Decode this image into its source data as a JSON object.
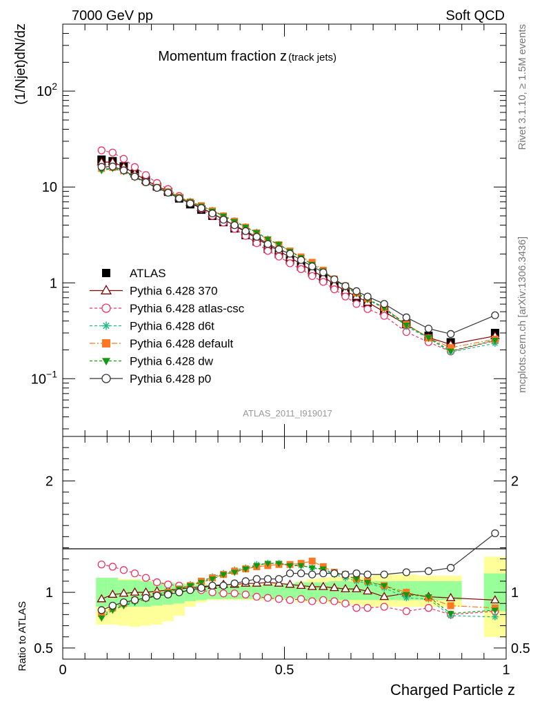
{
  "header": {
    "left": "7000 GeV pp",
    "right": "Soft QCD"
  },
  "side_labels": {
    "rivet": "Rivet 3.1.10, ≥ 1.5M events",
    "mcplots": "mcplots.cern.ch [arXiv:1306.3436]"
  },
  "chart_data": {
    "type": "line",
    "title_main": "Momentum fraction z",
    "title_sub": "(track jets)",
    "ylabel": "(1/Njet)dN/dz",
    "xlabel": "Charged Particle z",
    "ratio_ylabel": "Ratio to ATLAS",
    "watermark": "ATLAS_2011_I919017",
    "y_scale": "log",
    "ylim": [
      0.025,
      500
    ],
    "xlim": [
      0,
      1
    ],
    "ratio_ylim": [
      0.4,
      2.4
    ],
    "x_ticks": [
      "0",
      "0.5",
      "1"
    ],
    "y_ticks": [
      "10^-1",
      "1",
      "10",
      "10^2"
    ],
    "ratio_y_ticks": [
      "0.5",
      "1",
      "2"
    ],
    "bands": [
      {
        "x0": 0.075,
        "x1": 0.1,
        "inner": [
          0.87,
          1.13
        ],
        "outer": [
          0.71,
          1.13
        ]
      },
      {
        "x0": 0.1,
        "x1": 0.125,
        "inner": [
          0.87,
          1.13
        ],
        "outer": [
          0.71,
          1.13
        ]
      },
      {
        "x0": 0.125,
        "x1": 0.15,
        "inner": [
          0.87,
          1.11
        ],
        "outer": [
          0.7,
          1.12
        ]
      },
      {
        "x0": 0.15,
        "x1": 0.175,
        "inner": [
          0.87,
          1.11
        ],
        "outer": [
          0.69,
          1.12
        ]
      },
      {
        "x0": 0.175,
        "x1": 0.2,
        "inner": [
          0.87,
          1.1
        ],
        "outer": [
          0.7,
          1.11
        ]
      },
      {
        "x0": 0.2,
        "x1": 0.225,
        "inner": [
          0.88,
          1.09
        ],
        "outer": [
          0.71,
          1.09
        ]
      },
      {
        "x0": 0.225,
        "x1": 0.25,
        "inner": [
          0.89,
          1.09
        ],
        "outer": [
          0.74,
          1.09
        ]
      },
      {
        "x0": 0.25,
        "x1": 0.275,
        "inner": [
          0.9,
          1.08
        ],
        "outer": [
          0.79,
          1.08
        ]
      },
      {
        "x0": 0.275,
        "x1": 0.3,
        "inner": [
          0.92,
          1.07
        ],
        "outer": [
          0.87,
          1.08
        ]
      },
      {
        "x0": 0.3,
        "x1": 0.325,
        "inner": [
          0.93,
          1.07
        ],
        "outer": [
          0.91,
          1.08
        ]
      },
      {
        "x0": 0.325,
        "x1": 0.35,
        "inner": [
          0.94,
          1.06
        ],
        "outer": [
          0.93,
          1.07
        ]
      },
      {
        "x0": 0.35,
        "x1": 0.375,
        "inner": [
          0.94,
          1.06
        ],
        "outer": [
          0.93,
          1.07
        ]
      },
      {
        "x0": 0.375,
        "x1": 0.4,
        "inner": [
          0.94,
          1.06
        ],
        "outer": [
          0.93,
          1.07
        ]
      },
      {
        "x0": 0.4,
        "x1": 0.425,
        "inner": [
          0.94,
          1.06
        ],
        "outer": [
          0.93,
          1.07
        ]
      },
      {
        "x0": 0.425,
        "x1": 0.45,
        "inner": [
          0.94,
          1.06
        ],
        "outer": [
          0.93,
          1.07
        ]
      },
      {
        "x0": 0.45,
        "x1": 0.475,
        "inner": [
          0.94,
          1.07
        ],
        "outer": [
          0.93,
          1.08
        ]
      },
      {
        "x0": 0.475,
        "x1": 0.5,
        "inner": [
          0.94,
          1.07
        ],
        "outer": [
          0.93,
          1.08
        ]
      },
      {
        "x0": 0.5,
        "x1": 0.525,
        "inner": [
          0.94,
          1.08
        ],
        "outer": [
          0.93,
          1.08
        ]
      },
      {
        "x0": 0.525,
        "x1": 0.55,
        "inner": [
          0.93,
          1.09
        ],
        "outer": [
          0.91,
          1.1
        ]
      },
      {
        "x0": 0.55,
        "x1": 0.575,
        "inner": [
          0.93,
          1.09
        ],
        "outer": [
          0.91,
          1.12
        ]
      },
      {
        "x0": 0.575,
        "x1": 0.6,
        "inner": [
          0.93,
          1.09
        ],
        "outer": [
          0.91,
          1.13
        ]
      },
      {
        "x0": 0.6,
        "x1": 0.625,
        "inner": [
          0.93,
          1.1
        ],
        "outer": [
          0.9,
          1.14
        ]
      },
      {
        "x0": 0.625,
        "x1": 0.65,
        "inner": [
          0.93,
          1.1
        ],
        "outer": [
          0.89,
          1.14
        ]
      },
      {
        "x0": 0.65,
        "x1": 0.675,
        "inner": [
          0.93,
          1.1
        ],
        "outer": [
          0.89,
          1.14
        ]
      },
      {
        "x0": 0.675,
        "x1": 0.7,
        "inner": [
          0.93,
          1.1
        ],
        "outer": [
          0.87,
          1.14
        ]
      },
      {
        "x0": 0.7,
        "x1": 0.75,
        "inner": [
          0.93,
          1.1
        ],
        "outer": [
          0.87,
          1.16
        ]
      },
      {
        "x0": 0.75,
        "x1": 0.8,
        "inner": [
          0.93,
          1.1
        ],
        "outer": [
          0.87,
          1.16
        ]
      },
      {
        "x0": 0.8,
        "x1": 0.9,
        "inner": [
          0.93,
          1.1
        ],
        "outer": [
          0.87,
          1.15
        ]
      },
      {
        "x0": 0.95,
        "x1": 1.0,
        "inner": [
          0.83,
          1.17
        ],
        "outer": [
          0.6,
          1.32
        ]
      }
    ],
    "series": [
      {
        "name": "ATLAS",
        "color": "#000000",
        "marker": "square-filled",
        "dash": "none",
        "x": [
          0.0875,
          0.1125,
          0.1375,
          0.1625,
          0.1875,
          0.2125,
          0.2375,
          0.2625,
          0.2875,
          0.3125,
          0.3375,
          0.3625,
          0.3875,
          0.4125,
          0.4375,
          0.4625,
          0.4875,
          0.5125,
          0.5375,
          0.5625,
          0.5875,
          0.6125,
          0.6375,
          0.6625,
          0.6875,
          0.725,
          0.775,
          0.825,
          0.875,
          0.975
        ],
        "values": [
          19.3,
          18.6,
          16.4,
          13.8,
          11.8,
          10.1,
          8.9,
          7.6,
          6.6,
          5.8,
          5.0,
          4.3,
          3.7,
          3.15,
          2.7,
          2.27,
          2.0,
          1.72,
          1.48,
          1.28,
          1.1,
          0.93,
          0.8,
          0.7,
          0.62,
          0.52,
          0.37,
          0.28,
          0.24,
          0.3
        ]
      },
      {
        "name": "Pythia 6.428 370",
        "color": "#800000",
        "marker": "triangle-open",
        "dash": "none",
        "x": [
          0.0875,
          0.1125,
          0.1375,
          0.1625,
          0.1875,
          0.2125,
          0.2375,
          0.2625,
          0.2875,
          0.3125,
          0.3375,
          0.3625,
          0.3875,
          0.4125,
          0.4375,
          0.4625,
          0.4875,
          0.5125,
          0.5375,
          0.5625,
          0.5875,
          0.6125,
          0.6375,
          0.6625,
          0.6875,
          0.725,
          0.775,
          0.825,
          0.875,
          0.975
        ],
        "ratio": [
          0.94,
          0.98,
          0.99,
          1.0,
          1.0,
          1.01,
          1.02,
          1.03,
          1.04,
          1.05,
          1.06,
          1.07,
          1.07,
          1.08,
          1.08,
          1.09,
          1.08,
          1.07,
          1.06,
          1.05,
          1.05,
          1.04,
          1.03,
          1.03,
          1.01,
          0.96,
          0.99,
          0.96,
          0.95,
          0.93
        ]
      },
      {
        "name": "Pythia 6.428 atlas-csc",
        "color": "#ee3366",
        "marker": "circle-open",
        "dash": "4,3",
        "x": [
          0.0875,
          0.1125,
          0.1375,
          0.1625,
          0.1875,
          0.2125,
          0.2375,
          0.2625,
          0.2875,
          0.3125,
          0.3375,
          0.3625,
          0.3875,
          0.4125,
          0.4375,
          0.4625,
          0.4875,
          0.5125,
          0.5375,
          0.5625,
          0.5875,
          0.6125,
          0.6375,
          0.6625,
          0.6875,
          0.725,
          0.775,
          0.825,
          0.875,
          0.975
        ],
        "ratio": [
          1.25,
          1.23,
          1.2,
          1.17,
          1.13,
          1.09,
          1.07,
          1.06,
          1.04,
          1.02,
          1.0,
          0.99,
          0.99,
          0.98,
          0.96,
          0.95,
          0.94,
          0.93,
          0.94,
          0.92,
          0.93,
          0.92,
          0.9,
          0.86,
          0.86,
          0.87,
          0.83,
          0.86,
          0.8,
          0.83
        ]
      },
      {
        "name": "Pythia 6.428 d6t",
        "color": "#22bb88",
        "marker": "asterisk",
        "dash": "4,3",
        "x": [
          0.0875,
          0.1125,
          0.1375,
          0.1625,
          0.1875,
          0.2125,
          0.2375,
          0.2625,
          0.2875,
          0.3125,
          0.3375,
          0.3625,
          0.3875,
          0.4125,
          0.4375,
          0.4625,
          0.4875,
          0.5125,
          0.5375,
          0.5625,
          0.5875,
          0.6125,
          0.6375,
          0.6625,
          0.6875,
          0.725,
          0.775,
          0.825,
          0.875,
          0.975
        ],
        "ratio": [
          0.79,
          0.85,
          0.89,
          0.92,
          0.95,
          0.98,
          1.01,
          1.03,
          1.07,
          1.1,
          1.14,
          1.17,
          1.2,
          1.22,
          1.25,
          1.26,
          1.26,
          1.25,
          1.24,
          1.22,
          1.2,
          1.16,
          1.13,
          1.1,
          1.08,
          1.04,
          0.95,
          0.94,
          0.79,
          0.78
        ]
      },
      {
        "name": "Pythia 6.428 default",
        "color": "#ff7722",
        "marker": "square-filled",
        "dash": "8,3,2,3",
        "x": [
          0.0875,
          0.1125,
          0.1375,
          0.1625,
          0.1875,
          0.2125,
          0.2375,
          0.2625,
          0.2875,
          0.3125,
          0.3375,
          0.3625,
          0.3875,
          0.4125,
          0.4375,
          0.4625,
          0.4875,
          0.5125,
          0.5375,
          0.5625,
          0.5875,
          0.6125,
          0.6375,
          0.6625,
          0.6875,
          0.725,
          0.775,
          0.825,
          0.875,
          0.975
        ],
        "ratio": [
          0.81,
          0.86,
          0.9,
          0.93,
          0.95,
          0.98,
          1.0,
          1.03,
          1.06,
          1.1,
          1.13,
          1.16,
          1.19,
          1.21,
          1.23,
          1.24,
          1.25,
          1.25,
          1.26,
          1.28,
          1.23,
          1.18,
          1.16,
          1.12,
          1.1,
          1.06,
          1.0,
          0.95,
          0.88,
          0.86
        ]
      },
      {
        "name": "Pythia 6.428 dw",
        "color": "#119911",
        "marker": "triangle-down-filled",
        "dash": "4,3",
        "x": [
          0.0875,
          0.1125,
          0.1375,
          0.1625,
          0.1875,
          0.2125,
          0.2375,
          0.2625,
          0.2875,
          0.3125,
          0.3375,
          0.3625,
          0.3875,
          0.4125,
          0.4375,
          0.4625,
          0.4875,
          0.5125,
          0.5375,
          0.5625,
          0.5875,
          0.6125,
          0.6375,
          0.6625,
          0.6875,
          0.725,
          0.775,
          0.825,
          0.875,
          0.975
        ],
        "ratio": [
          0.77,
          0.84,
          0.88,
          0.91,
          0.94,
          0.97,
          1.0,
          1.03,
          1.06,
          1.09,
          1.12,
          1.16,
          1.18,
          1.21,
          1.24,
          1.26,
          1.26,
          1.24,
          1.24,
          1.22,
          1.21,
          1.17,
          1.15,
          1.12,
          1.09,
          1.06,
          0.98,
          0.96,
          0.81,
          0.84
        ]
      },
      {
        "name": "Pythia 6.428 p0",
        "color": "#333333",
        "marker": "circle-open",
        "dash": "none",
        "x": [
          0.0875,
          0.1125,
          0.1375,
          0.1625,
          0.1875,
          0.2125,
          0.2375,
          0.2625,
          0.2875,
          0.3125,
          0.3375,
          0.3625,
          0.3875,
          0.4125,
          0.4375,
          0.4625,
          0.4875,
          0.5125,
          0.5375,
          0.5625,
          0.5875,
          0.6125,
          0.6375,
          0.6625,
          0.6875,
          0.725,
          0.775,
          0.825,
          0.875,
          0.975
        ],
        "ratio": [
          0.84,
          0.88,
          0.91,
          0.93,
          0.95,
          0.97,
          0.98,
          1.0,
          1.02,
          1.04,
          1.06,
          1.06,
          1.08,
          1.1,
          1.12,
          1.12,
          1.12,
          1.17,
          1.17,
          1.16,
          1.17,
          1.17,
          1.16,
          1.17,
          1.16,
          1.16,
          1.18,
          1.19,
          1.22,
          1.53
        ]
      }
    ]
  }
}
